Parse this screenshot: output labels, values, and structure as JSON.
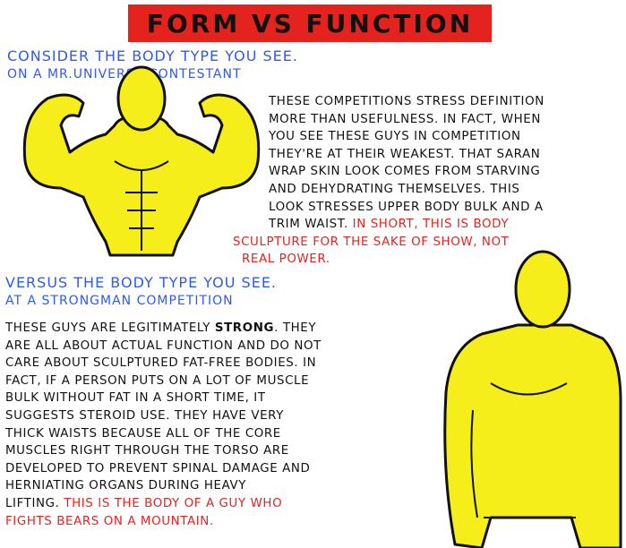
{
  "title": "Form vs Function",
  "section1": {
    "heading": [
      "Consider the body type you see.",
      "On a Mr.Universe contestant"
    ],
    "body_lines": [
      "These competitions stress definition",
      "more than usefulness. In fact, when",
      "you see these guys in competition",
      "they're at their weakest. That saran",
      "wrap skin look comes from starving",
      "and dehydrating themselves. This",
      "look stresses upper body bulk and a",
      "trim waist."
    ],
    "highlight_lines": [
      "In short, this is body",
      "sculpture for the sake of show, not",
      "real power."
    ]
  },
  "section2": {
    "heading": [
      "Versus the body type you see.",
      "At a strongman competition"
    ],
    "line1_pre": "These guys are legitimately ",
    "line1_strong": "strong",
    "line1_post": ". They",
    "body_lines": [
      "are all about actual function and do not",
      "care about sculptured fat-free bodies. In",
      "fact, if a person puts on a lot of muscle",
      "bulk without fat in a short time, it",
      "suggests steroid use. They have very",
      "thick waists because all of the core",
      "muscles right through the torso are",
      "developed to prevent spinal damage and",
      "herniating organs during heavy"
    ],
    "last_pre": "lifting. ",
    "highlight_lines": [
      "This is the body of a guy who",
      "fights bears on a mountain."
    ]
  },
  "colors": {
    "banner": "#e4231f",
    "heading": "#2f5be8",
    "highlight": "#e4231f",
    "figure": "#f5ee1a"
  }
}
